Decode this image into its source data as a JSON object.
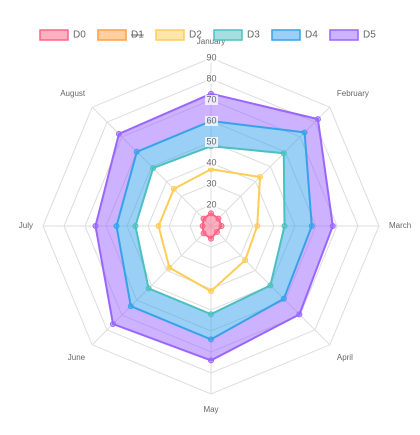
{
  "chart_data": {
    "type": "radar",
    "categories": [
      "January",
      "February",
      "March",
      "April",
      "May",
      "June",
      "July",
      "August"
    ],
    "rlim": [
      10,
      90
    ],
    "rticks": [
      20,
      30,
      40,
      50,
      60,
      70,
      80,
      90
    ],
    "grid": true,
    "legend": "top",
    "series": [
      {
        "name": "D0",
        "color": "#ff6384",
        "fill": "origin",
        "values": [
          16,
          15,
          15,
          14,
          16,
          15,
          14,
          15
        ]
      },
      {
        "name": "D1",
        "color": "#ff9f40",
        "hidden": true,
        "values": [
          null,
          null,
          null,
          null,
          null,
          null,
          null,
          null
        ]
      },
      {
        "name": "D2",
        "color": "#ffcd56",
        "fill": "none",
        "values": [
          37,
          43,
          32,
          33,
          41,
          38,
          35,
          35
        ]
      },
      {
        "name": "D3",
        "color": "#4bc0c0",
        "fill": "none",
        "values": [
          48,
          59,
          45,
          50,
          52,
          52,
          46,
          49
        ]
      },
      {
        "name": "D4",
        "color": "#36a2eb",
        "fill": "D3",
        "values": [
          60,
          73,
          58,
          59,
          64,
          64,
          55,
          60
        ]
      },
      {
        "name": "D5",
        "color": "#9966ff",
        "fill": "D4",
        "values": [
          73,
          82,
          68,
          69.5,
          74,
          76,
          65,
          72
        ]
      }
    ]
  }
}
